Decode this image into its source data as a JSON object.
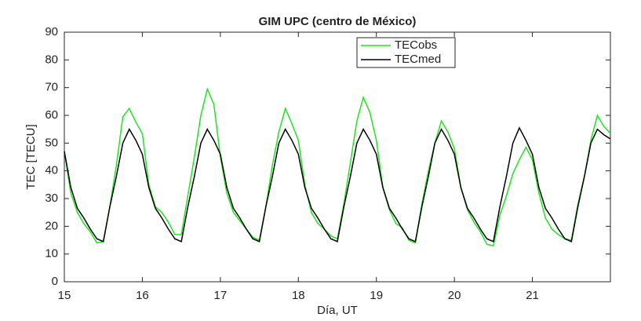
{
  "chart_data": {
    "type": "line",
    "title": "GIM UPC (centro de México)",
    "xlabel": "Día, UT",
    "ylabel": "TEC [TECU]",
    "x": [
      15,
      15.083,
      15.167,
      15.25,
      15.333,
      15.417,
      15.5,
      15.583,
      15.667,
      15.75,
      15.833,
      15.917,
      16,
      16.083,
      16.167,
      16.25,
      16.333,
      16.417,
      16.5,
      16.583,
      16.667,
      16.75,
      16.833,
      16.917,
      17,
      17.083,
      17.167,
      17.25,
      17.333,
      17.417,
      17.5,
      17.583,
      17.667,
      17.75,
      17.833,
      17.917,
      18,
      18.083,
      18.167,
      18.25,
      18.333,
      18.417,
      18.5,
      18.583,
      18.667,
      18.75,
      18.833,
      18.917,
      19,
      19.083,
      19.167,
      19.25,
      19.333,
      19.417,
      19.5,
      19.583,
      19.667,
      19.75,
      19.833,
      19.917,
      20,
      20.083,
      20.167,
      20.25,
      20.333,
      20.417,
      20.5,
      20.583,
      20.667,
      20.75,
      20.833,
      20.917,
      21,
      21.083,
      21.167,
      21.25,
      21.333,
      21.417,
      21.5,
      21.583,
      21.667,
      21.75,
      21.833,
      21.917,
      22
    ],
    "series": [
      {
        "name": "TECobs",
        "color": "#1ee61e",
        "values": [
          47,
          32,
          25,
          21,
          18,
          14,
          14.5,
          27,
          42,
          59.5,
          62.5,
          57.5,
          53.5,
          35,
          27,
          25,
          21.5,
          17,
          17,
          31,
          45,
          60,
          69.5,
          64,
          45,
          32,
          25,
          22,
          19,
          16,
          15,
          27,
          42,
          54,
          62.5,
          57,
          51,
          35,
          25,
          21,
          19,
          16.5,
          15.5,
          28,
          43,
          58,
          66.5,
          61,
          51,
          34,
          26,
          21,
          19.5,
          15,
          14,
          28,
          40,
          50,
          58,
          54,
          48,
          34,
          26,
          21.5,
          18,
          13.5,
          13,
          24,
          31,
          39,
          44,
          48.5,
          44,
          32,
          23,
          19,
          17,
          15.5,
          15,
          28,
          38,
          51,
          60,
          56,
          53.5
        ]
      },
      {
        "name": "TECmed",
        "color": "#000000",
        "values": [
          47,
          34,
          26.5,
          23,
          19,
          15.5,
          14.5,
          27,
          38,
          50,
          55,
          51,
          46,
          34,
          26.5,
          23,
          19,
          15.5,
          14.5,
          27,
          38,
          50,
          55,
          51,
          46,
          34,
          26.5,
          23,
          19,
          15.5,
          14.5,
          27,
          38,
          50,
          55,
          51,
          46,
          34,
          26.5,
          23,
          19,
          15.5,
          14.5,
          27,
          38,
          50,
          55,
          51,
          46,
          34,
          26.5,
          23,
          19,
          15.5,
          14.5,
          27,
          38,
          50,
          55,
          51,
          46,
          34,
          26.5,
          23,
          19,
          15.5,
          14.5,
          27,
          38,
          50,
          55.5,
          51,
          46,
          34,
          26.5,
          23,
          19,
          15.5,
          14.5,
          27,
          38,
          50,
          55,
          53,
          51.5
        ]
      }
    ],
    "xlim": [
      15,
      22
    ],
    "xticks": [
      15,
      16,
      17,
      18,
      19,
      20,
      21
    ],
    "ylim": [
      0,
      90
    ],
    "yticks": [
      0,
      10,
      20,
      30,
      40,
      50,
      60,
      70,
      80,
      90
    ],
    "legend": "upper right"
  }
}
